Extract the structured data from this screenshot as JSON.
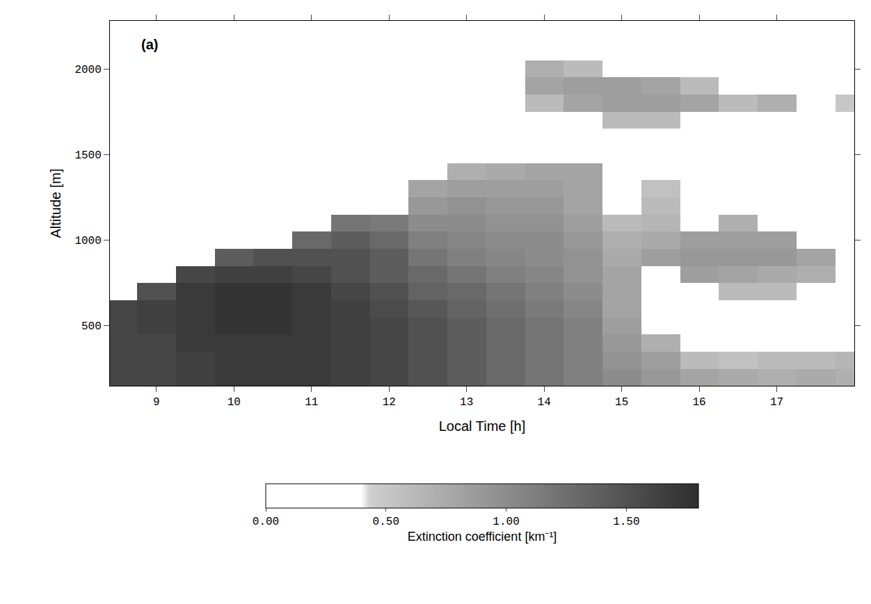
{
  "chart_data": {
    "type": "heatmap",
    "annotation": "(a)",
    "x_label": "Local Time [h]",
    "y_label": "Altitude [m]",
    "x": [
      8.5,
      9.0,
      9.5,
      10.0,
      10.5,
      11.0,
      11.5,
      12.0,
      12.5,
      13.0,
      13.5,
      14.0,
      14.5,
      15.0,
      15.5,
      16.0,
      16.5,
      17.0,
      17.5,
      18.0
    ],
    "y": [
      200,
      300,
      400,
      500,
      600,
      700,
      800,
      900,
      1000,
      1100,
      1200,
      1300,
      1400,
      1500,
      1600,
      1700,
      1800,
      1900,
      2000,
      2100,
      2200
    ],
    "cells": [
      [
        1.6,
        1.6,
        1.65,
        1.7,
        1.7,
        1.7,
        1.65,
        1.6,
        1.5,
        1.4,
        1.3,
        1.2,
        1.1,
        1.0,
        0.9,
        0.8,
        0.75,
        0.7,
        0.75,
        0.7
      ],
      [
        1.6,
        1.6,
        1.65,
        1.7,
        1.7,
        1.7,
        1.65,
        1.6,
        1.5,
        1.4,
        1.3,
        1.2,
        1.1,
        0.95,
        0.85,
        0.6,
        0.55,
        0.6,
        0.6,
        0.65
      ],
      [
        1.6,
        1.6,
        1.7,
        1.7,
        1.7,
        1.7,
        1.65,
        1.6,
        1.5,
        1.4,
        1.3,
        1.2,
        1.1,
        0.9,
        0.7,
        0,
        0,
        0,
        0,
        0
      ],
      [
        1.6,
        1.65,
        1.7,
        1.75,
        1.75,
        1.7,
        1.65,
        1.6,
        1.5,
        1.4,
        1.3,
        1.2,
        1.1,
        0.85,
        0,
        0,
        0,
        0,
        0,
        0
      ],
      [
        1.6,
        1.65,
        1.7,
        1.75,
        1.75,
        1.7,
        1.65,
        1.55,
        1.45,
        1.35,
        1.25,
        1.15,
        1.05,
        0.8,
        0,
        0,
        0,
        0,
        0,
        0
      ],
      [
        0,
        1.5,
        1.7,
        1.75,
        1.75,
        1.7,
        1.6,
        1.5,
        1.35,
        1.3,
        1.2,
        1.1,
        1.0,
        0.8,
        0,
        0,
        0.6,
        0.6,
        0,
        0
      ],
      [
        0,
        0,
        1.6,
        1.65,
        1.65,
        1.6,
        1.5,
        1.4,
        1.3,
        1.2,
        1.1,
        1.05,
        0.95,
        0.8,
        0,
        0.85,
        0.8,
        0.75,
        0.7,
        0
      ],
      [
        0,
        0,
        0,
        1.4,
        1.5,
        1.5,
        1.5,
        1.4,
        1.2,
        1.1,
        1.05,
        1.0,
        0.95,
        0.75,
        0.85,
        0.9,
        0.9,
        0.9,
        0.8,
        0
      ],
      [
        0,
        0,
        0,
        0,
        0,
        1.3,
        1.4,
        1.3,
        1.1,
        1.05,
        1.0,
        1.0,
        0.9,
        0.7,
        0.75,
        0.85,
        0.85,
        0.85,
        0,
        0
      ],
      [
        0,
        0,
        0,
        0,
        0,
        0,
        1.2,
        1.15,
        1.0,
        1.0,
        0.95,
        0.95,
        0.85,
        0.6,
        0.65,
        0,
        0.7,
        0,
        0,
        0
      ],
      [
        0,
        0,
        0,
        0,
        0,
        0,
        0,
        0,
        0.9,
        0.95,
        0.9,
        0.9,
        0.8,
        0,
        0.6,
        0,
        0,
        0,
        0,
        0
      ],
      [
        0,
        0,
        0,
        0,
        0,
        0,
        0,
        0,
        0.8,
        0.85,
        0.85,
        0.85,
        0.8,
        0,
        0.55,
        0,
        0,
        0,
        0,
        0
      ],
      [
        0,
        0,
        0,
        0,
        0,
        0,
        0,
        0,
        0,
        0.7,
        0.75,
        0.8,
        0.8,
        0,
        0,
        0,
        0,
        0,
        0,
        0
      ],
      [
        0,
        0,
        0,
        0,
        0,
        0,
        0,
        0,
        0,
        0,
        0,
        0,
        0,
        0,
        0,
        0,
        0,
        0,
        0,
        0
      ],
      [
        0,
        0,
        0,
        0,
        0,
        0,
        0,
        0,
        0,
        0,
        0,
        0,
        0,
        0,
        0,
        0,
        0,
        0,
        0,
        0
      ],
      [
        0,
        0,
        0,
        0,
        0,
        0,
        0,
        0,
        0,
        0,
        0,
        0,
        0,
        0.6,
        0.6,
        0,
        0,
        0,
        0,
        0
      ],
      [
        0,
        0,
        0,
        0,
        0,
        0,
        0,
        0,
        0,
        0,
        0,
        0.6,
        0.8,
        0.85,
        0.85,
        0.8,
        0.6,
        0.7,
        0,
        0.5
      ],
      [
        0,
        0,
        0,
        0,
        0,
        0,
        0,
        0,
        0,
        0,
        0,
        0.8,
        0.85,
        0.85,
        0.8,
        0.6,
        0,
        0,
        0,
        0
      ],
      [
        0,
        0,
        0,
        0,
        0,
        0,
        0,
        0,
        0,
        0,
        0,
        0.7,
        0.6,
        0,
        0,
        0,
        0,
        0,
        0,
        0
      ],
      [
        0,
        0,
        0,
        0,
        0,
        0,
        0,
        0,
        0,
        0,
        0,
        0,
        0,
        0,
        0,
        0,
        0,
        0,
        0,
        0
      ],
      [
        0,
        0,
        0,
        0,
        0,
        0,
        0,
        0,
        0,
        0,
        0,
        0,
        0,
        0,
        0,
        0,
        0,
        0,
        0,
        0
      ]
    ],
    "xlim": [
      8.4,
      18.0
    ],
    "xticks": [
      9,
      10,
      11,
      12,
      13,
      14,
      15,
      16,
      17
    ],
    "ylim": [
      150,
      2280
    ],
    "yticks": [
      500,
      1000,
      1500,
      2000
    ],
    "colorbar": {
      "title": "Extinction coefficient [km⁻¹]",
      "range": [
        0,
        1.8
      ],
      "ticks": [
        {
          "value": 0,
          "label": "0.00"
        },
        {
          "value": 0.5,
          "label": "0.50"
        },
        {
          "value": 1.0,
          "label": "1.00"
        },
        {
          "value": 1.5,
          "label": "1.50"
        }
      ]
    },
    "grid": false
  }
}
